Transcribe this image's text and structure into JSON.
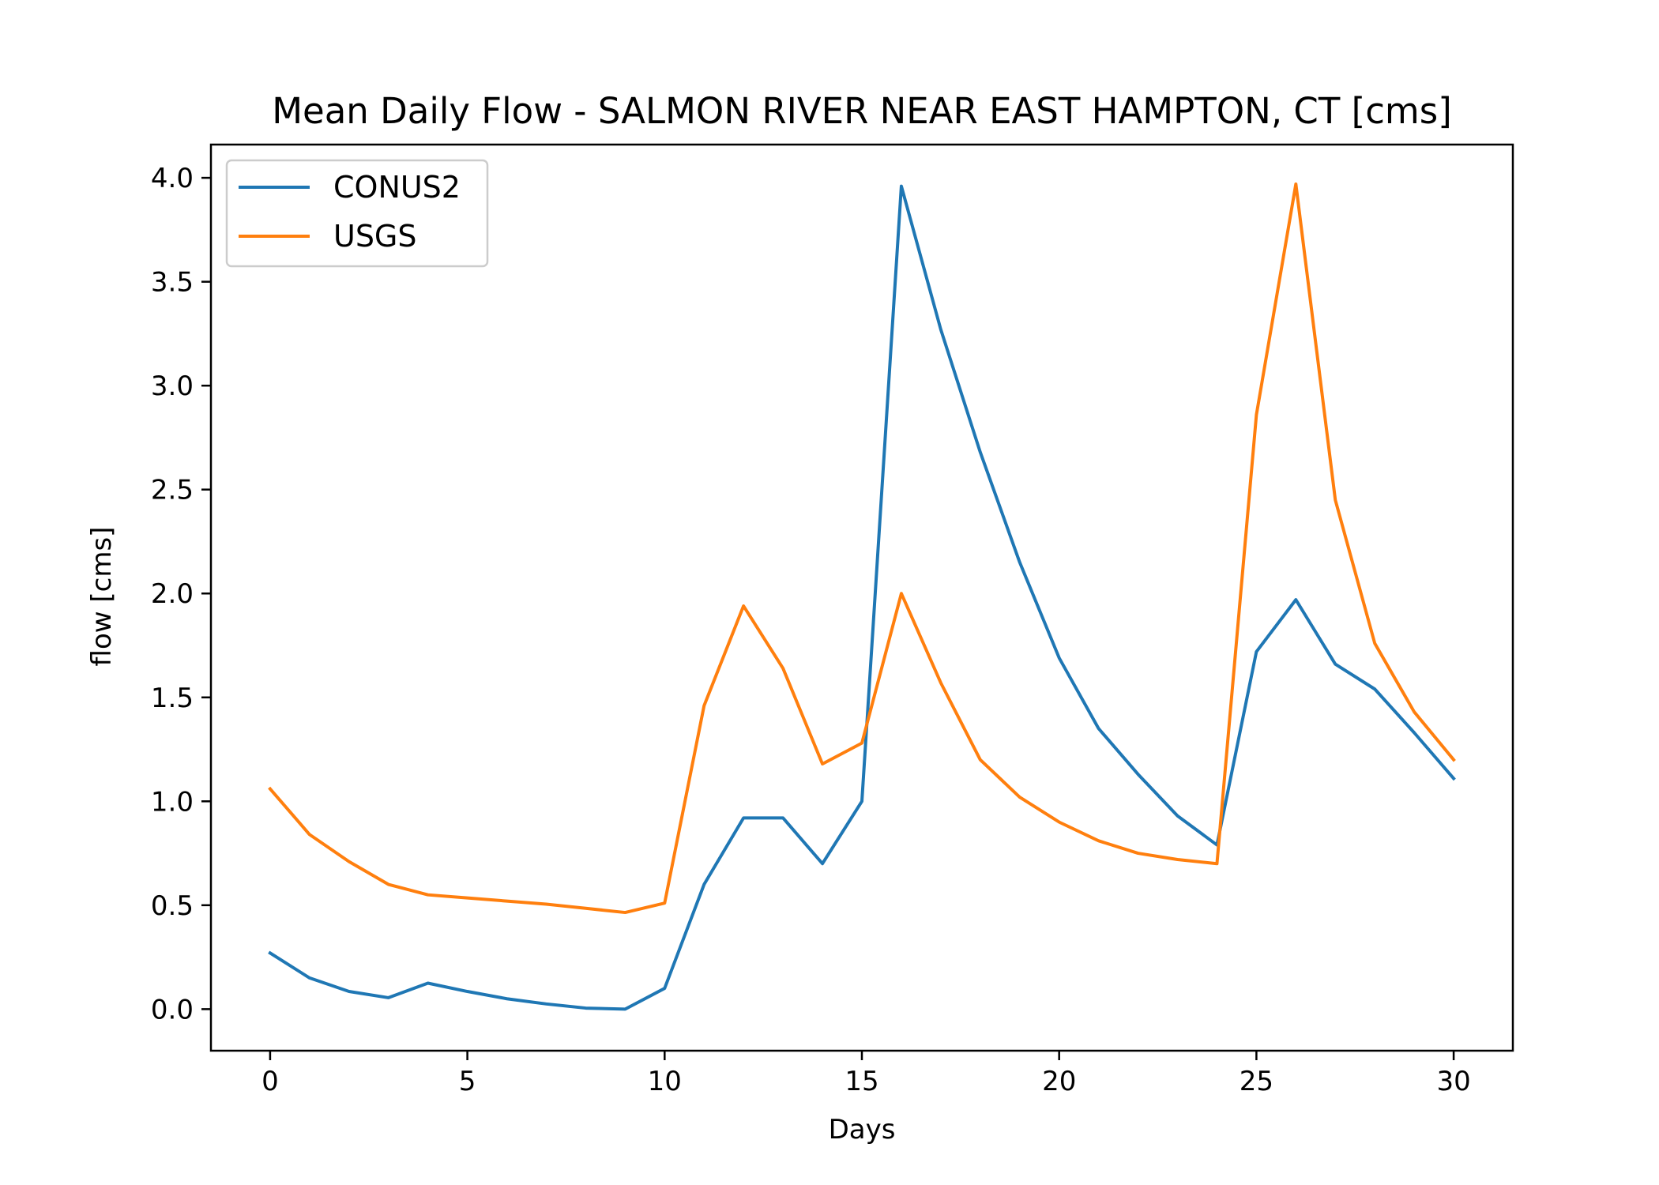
{
  "chart_data": {
    "type": "line",
    "title": "Mean Daily Flow - SALMON RIVER NEAR EAST HAMPTON, CT [cms]",
    "xlabel": "Days",
    "ylabel": "flow [cms]",
    "xlim": [
      -1.5,
      31.5
    ],
    "ylim": [
      -0.2,
      4.16
    ],
    "xticks": [
      0,
      5,
      10,
      15,
      20,
      25,
      30
    ],
    "yticks": [
      0.0,
      0.5,
      1.0,
      1.5,
      2.0,
      2.5,
      3.0,
      3.5,
      4.0
    ],
    "ytick_labels": [
      "0.0",
      "0.5",
      "1.0",
      "1.5",
      "2.0",
      "2.5",
      "3.0",
      "3.5",
      "4.0"
    ],
    "grid": false,
    "legend_position": "top-left",
    "x": [
      0,
      1,
      2,
      3,
      4,
      5,
      6,
      7,
      8,
      9,
      10,
      11,
      12,
      13,
      14,
      15,
      16,
      17,
      18,
      19,
      20,
      21,
      22,
      23,
      24,
      25,
      26,
      27,
      28,
      29,
      30
    ],
    "series": [
      {
        "name": "CONUS2",
        "color": "#1f77b4",
        "values": [
          0.27,
          0.15,
          0.085,
          0.055,
          0.125,
          0.085,
          0.05,
          0.025,
          0.005,
          0.0,
          0.1,
          0.6,
          0.92,
          0.92,
          0.7,
          1.0,
          3.96,
          3.27,
          2.68,
          2.15,
          1.69,
          1.35,
          1.13,
          0.93,
          0.79,
          1.72,
          1.97,
          1.66,
          1.54,
          1.33,
          1.11
        ]
      },
      {
        "name": "USGS",
        "color": "#ff7f0e",
        "values": [
          1.06,
          0.84,
          0.71,
          0.6,
          0.55,
          0.535,
          0.52,
          0.505,
          0.485,
          0.465,
          0.51,
          1.46,
          1.94,
          1.64,
          1.18,
          1.28,
          2.0,
          1.57,
          1.2,
          1.02,
          0.9,
          0.81,
          0.75,
          0.72,
          0.7,
          2.86,
          3.97,
          2.45,
          1.76,
          1.43,
          1.2
        ]
      }
    ]
  }
}
